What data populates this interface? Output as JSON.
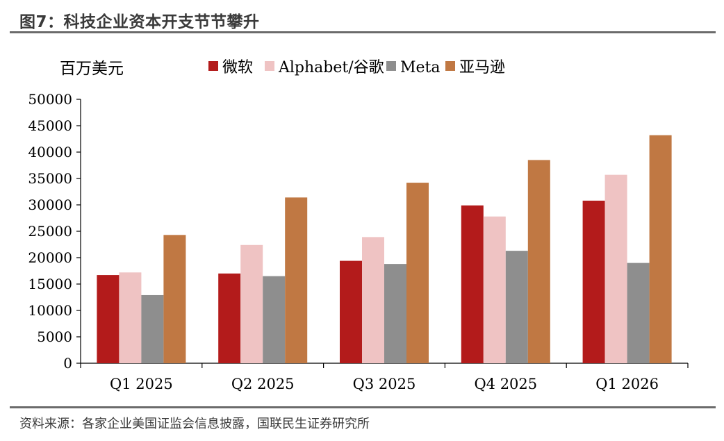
{
  "title": "图7：科技企业资本开支节节攀升",
  "source": "资料来源：各家企业美国证监会信息披露，国联民生证券研究所",
  "chart_data": {
    "type": "bar",
    "unit_label": "百万美元",
    "categories": [
      "Q1 2025",
      "Q2 2025",
      "Q3 2025",
      "Q4 2025",
      "Q1 2026"
    ],
    "series": [
      {
        "name": "微软",
        "color": "#b31b1b",
        "values": [
          16700,
          17000,
          19400,
          29900,
          30800
        ]
      },
      {
        "name": "Alphabet/谷歌",
        "color": "#efc3c3",
        "values": [
          17200,
          22400,
          23900,
          27800,
          35700
        ]
      },
      {
        "name": "Meta",
        "color": "#8e8e8e",
        "values": [
          12900,
          16500,
          18800,
          21300,
          19000
        ]
      },
      {
        "name": "亚马逊",
        "color": "#c07843",
        "values": [
          24300,
          31400,
          34200,
          38500,
          43200
        ]
      }
    ],
    "ylim": [
      0,
      50000
    ],
    "yticks": [
      0,
      5000,
      10000,
      15000,
      20000,
      25000,
      30000,
      35000,
      40000,
      45000,
      50000
    ],
    "grid": false,
    "legend_position": "top"
  }
}
